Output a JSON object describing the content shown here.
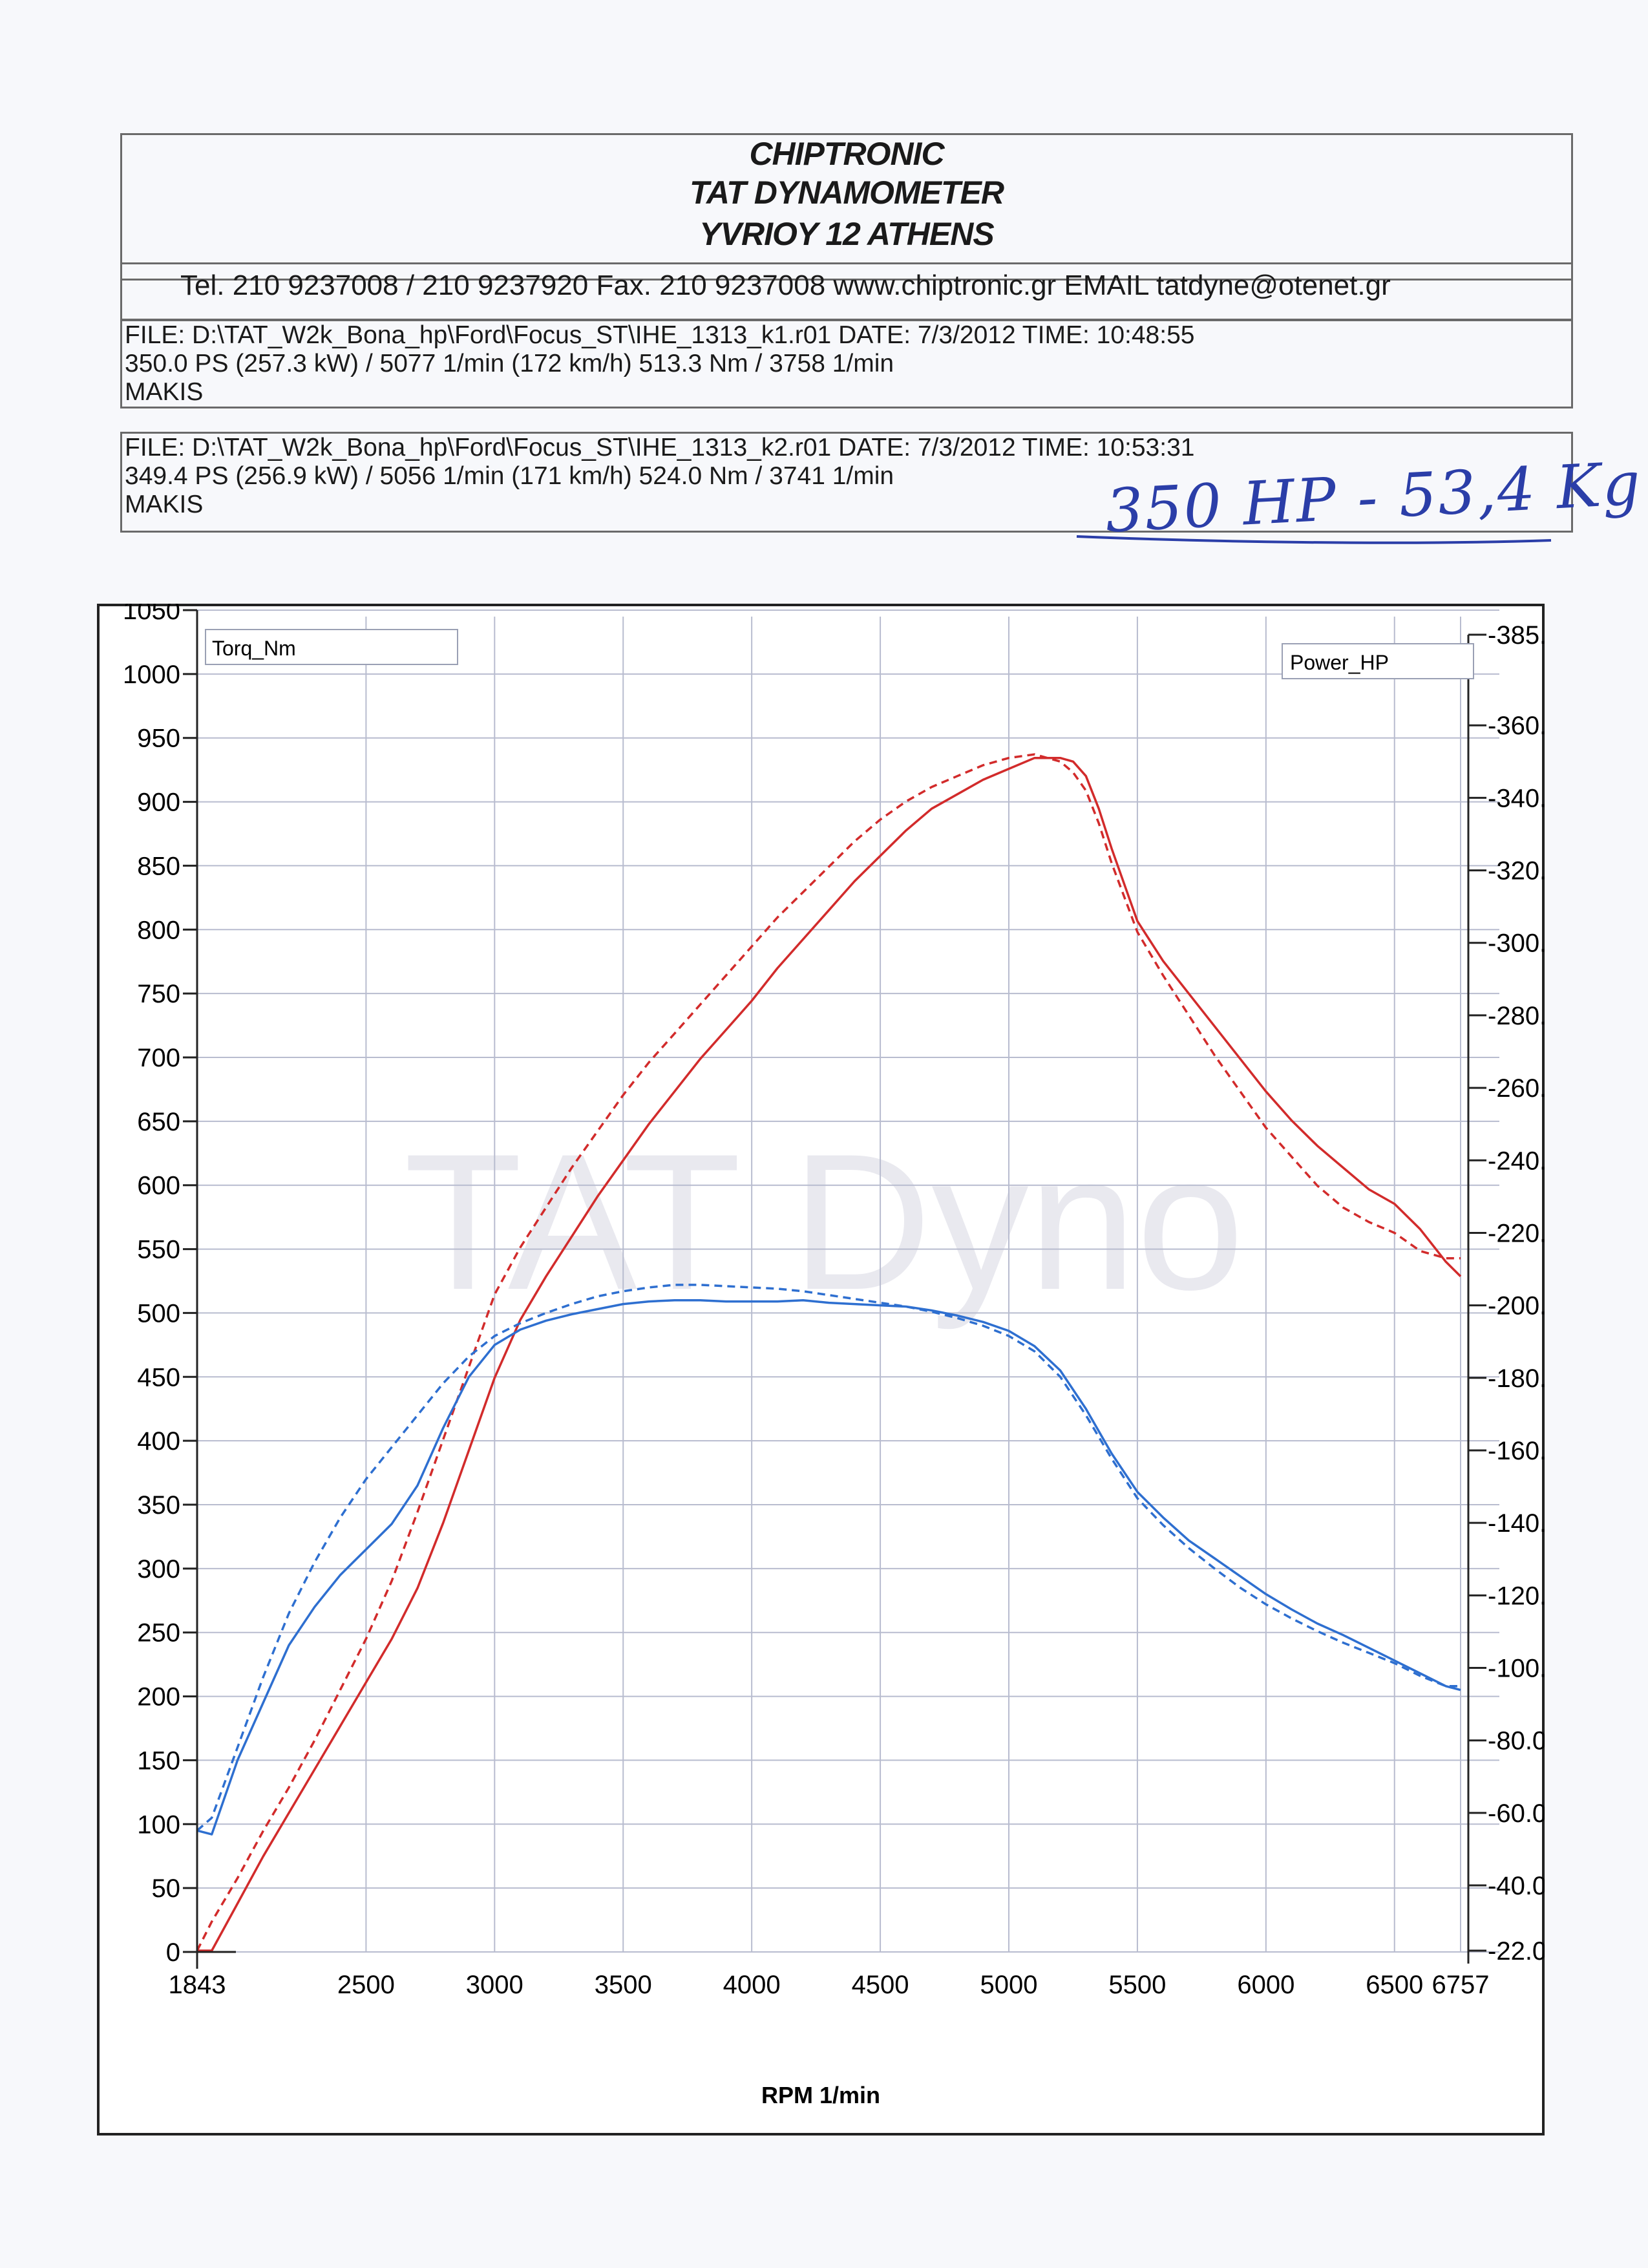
{
  "header": {
    "line1": "CHIPTRONIC",
    "line2": "TAT DYNAMOMETER",
    "line3": "YVRIOY 12 ATHENS",
    "contact": "Tel. 210 9237008 / 210 9237920   Fax. 210 9237008 www.chiptronic.gr EMAIL tatdyne@otenet.gr"
  },
  "runs": [
    {
      "file": "FILE: D:\\TAT_W2k_Bona_hp\\Ford\\Focus_ST\\IHE_1313_k1.r01  DATE: 7/3/2012  TIME: 10:48:55",
      "result": "350.0 PS  (257.3 kW) / 5077 1/min (172 km/h)    513.3 Nm / 3758 1/min",
      "operator": "MAKIS"
    },
    {
      "file": "FILE: D:\\TAT_W2k_Bona_hp\\Ford\\Focus_ST\\IHE_1313_k2.r01  DATE: 7/3/2012  TIME: 10:53:31",
      "result": "349.4 PS  (256.9 kW) / 5056 1/min (171 km/h)    524.0 Nm / 3741 1/min",
      "operator": "MAKIS"
    }
  ],
  "handwritten_note": "350 HP - 53,4 Kg",
  "watermark": "TAT Dyno",
  "colors": {
    "power": "#d22b2b",
    "torque": "#2e6fd0",
    "grid": "#b8bccf",
    "ink": "#2b3ea8"
  },
  "chart_data": {
    "type": "line",
    "xlabel": "RPM  1/min",
    "x_ticks": [
      1843,
      2500,
      3000,
      3500,
      4000,
      4500,
      5000,
      5500,
      6000,
      6500,
      6757
    ],
    "xlim": [
      1843,
      6757
    ],
    "y_left_label": "Torq_Nm",
    "y_left_ticks": [
      0,
      50,
      100,
      150,
      200,
      250,
      300,
      350,
      400,
      450,
      500,
      550,
      600,
      650,
      700,
      750,
      800,
      850,
      900,
      950,
      1000,
      1050
    ],
    "ylim_left": [
      0,
      1050
    ],
    "y_right_label": "Power_HP",
    "y_right_ticks": [
      -22.0,
      -40.0,
      -60.0,
      -80.0,
      -100.0,
      -120.0,
      -140.0,
      -160.0,
      -180.0,
      -200.0,
      -220.0,
      -240.0,
      -260.0,
      -280.0,
      -300.0,
      -320.0,
      -340.0,
      -360.0,
      -385.0
    ],
    "grid": true,
    "series": [
      {
        "axis": "right",
        "color": "#d22b2b",
        "dash": false,
        "x": [
          1843,
          1900,
          2000,
          2100,
          2200,
          2300,
          2400,
          2500,
          2600,
          2700,
          2800,
          2900,
          3000,
          3100,
          3200,
          3300,
          3400,
          3500,
          3600,
          3700,
          3800,
          3900,
          4000,
          4100,
          4200,
          4300,
          4400,
          4500,
          4600,
          4700,
          4800,
          4900,
          5000,
          5100,
          5200,
          5250,
          5300,
          5350,
          5400,
          5500,
          5600,
          5700,
          5800,
          5900,
          6000,
          6100,
          6200,
          6300,
          6400,
          6500,
          6600,
          6700,
          6757
        ],
        "y": [
          -22,
          -22,
          -35,
          -48,
          -60,
          -72,
          -84,
          -96,
          -108,
          -122,
          -140,
          -160,
          -180,
          -196,
          -208,
          -219,
          -230,
          -240,
          -250,
          -259,
          -268,
          -276,
          -284,
          -293,
          -301,
          -309,
          -317,
          -324,
          -331,
          -337,
          -341,
          -345,
          -348,
          -351,
          -351,
          -350,
          -346,
          -337,
          -326,
          -306,
          -295,
          -286,
          -277,
          -268,
          -259,
          -251,
          -244,
          -238,
          -232,
          -228,
          -221,
          -212,
          -208
        ]
      },
      {
        "axis": "right",
        "color": "#d22b2b",
        "dash": true,
        "x": [
          1843,
          1900,
          2000,
          2100,
          2200,
          2300,
          2400,
          2500,
          2600,
          2700,
          2800,
          2900,
          3000,
          3100,
          3200,
          3300,
          3400,
          3500,
          3600,
          3700,
          3800,
          3900,
          4000,
          4100,
          4200,
          4300,
          4400,
          4500,
          4600,
          4700,
          4800,
          4900,
          5000,
          5100,
          5200,
          5250,
          5300,
          5350,
          5400,
          5500,
          5600,
          5700,
          5800,
          5900,
          6000,
          6100,
          6200,
          6300,
          6400,
          6500,
          6600,
          6700,
          6757
        ],
        "y": [
          -22,
          -30,
          -42,
          -55,
          -67,
          -80,
          -94,
          -108,
          -124,
          -143,
          -163,
          -183,
          -203,
          -216,
          -227,
          -238,
          -248,
          -258,
          -267,
          -275,
          -283,
          -291,
          -299,
          -307,
          -314,
          -321,
          -328,
          -334,
          -339,
          -343,
          -346,
          -349,
          -351,
          -352,
          -350,
          -347,
          -342,
          -333,
          -322,
          -303,
          -291,
          -280,
          -269,
          -259,
          -249,
          -241,
          -233,
          -227,
          -223,
          -220,
          -215,
          -213,
          -213
        ]
      },
      {
        "axis": "left",
        "color": "#2e6fd0",
        "dash": false,
        "x": [
          1843,
          1900,
          2000,
          2100,
          2200,
          2300,
          2400,
          2500,
          2600,
          2700,
          2800,
          2900,
          3000,
          3100,
          3200,
          3300,
          3400,
          3500,
          3600,
          3700,
          3800,
          3900,
          4000,
          4100,
          4200,
          4300,
          4400,
          4500,
          4600,
          4700,
          4800,
          4900,
          5000,
          5100,
          5200,
          5300,
          5400,
          5500,
          5600,
          5700,
          5800,
          5900,
          6000,
          6100,
          6200,
          6300,
          6400,
          6500,
          6600,
          6700,
          6757
        ],
        "y": [
          95,
          92,
          150,
          195,
          240,
          270,
          295,
          315,
          335,
          365,
          410,
          450,
          475,
          487,
          494,
          499,
          503,
          507,
          509,
          510,
          510,
          509,
          509,
          509,
          510,
          508,
          507,
          506,
          505,
          502,
          498,
          493,
          486,
          474,
          455,
          425,
          390,
          360,
          340,
          322,
          308,
          294,
          280,
          268,
          257,
          248,
          238,
          228,
          218,
          208,
          205
        ]
      },
      {
        "axis": "left",
        "color": "#2e6fd0",
        "dash": true,
        "x": [
          1843,
          1900,
          2000,
          2100,
          2200,
          2300,
          2400,
          2500,
          2600,
          2700,
          2800,
          2900,
          3000,
          3100,
          3200,
          3300,
          3400,
          3500,
          3600,
          3700,
          3800,
          3900,
          4000,
          4100,
          4200,
          4300,
          4400,
          4500,
          4600,
          4700,
          4800,
          4900,
          5000,
          5100,
          5200,
          5300,
          5400,
          5500,
          5600,
          5700,
          5800,
          5900,
          6000,
          6100,
          6200,
          6300,
          6400,
          6500,
          6600,
          6700,
          6757
        ],
        "y": [
          95,
          105,
          160,
          215,
          265,
          305,
          340,
          370,
          395,
          420,
          445,
          466,
          482,
          492,
          500,
          507,
          513,
          517,
          520,
          522,
          522,
          521,
          520,
          519,
          517,
          514,
          511,
          508,
          505,
          501,
          496,
          490,
          482,
          470,
          450,
          420,
          386,
          355,
          334,
          316,
          300,
          285,
          272,
          261,
          251,
          242,
          234,
          226,
          216,
          208,
          208
        ]
      }
    ]
  }
}
